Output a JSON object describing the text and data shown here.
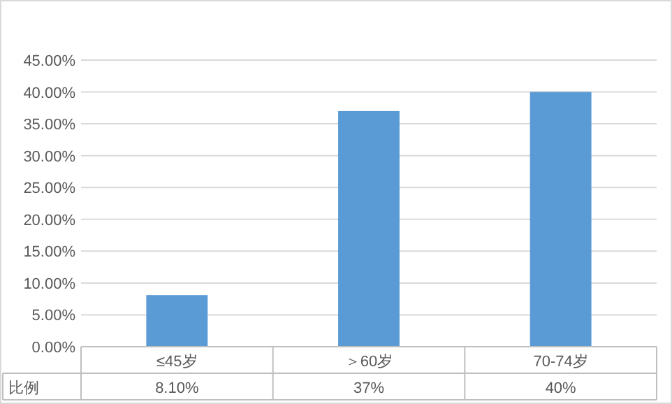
{
  "chart_data": {
    "type": "bar",
    "categories": [
      "≤45岁",
      "＞60岁",
      "70-74岁"
    ],
    "series": [
      {
        "name": "比例",
        "color": "#5b9bd5",
        "values": [
          8.1,
          37,
          40
        ],
        "value_labels": [
          "8.10%",
          "37%",
          "40%"
        ]
      }
    ],
    "ylim": [
      0,
      45
    ],
    "yticks": [
      {
        "value": 0,
        "label": "0.00%"
      },
      {
        "value": 5,
        "label": "5.00%"
      },
      {
        "value": 10,
        "label": "10.00%"
      },
      {
        "value": 15,
        "label": "15.00%"
      },
      {
        "value": 20,
        "label": "20.00%"
      },
      {
        "value": 25,
        "label": "25.00%"
      },
      {
        "value": 30,
        "label": "30.00%"
      },
      {
        "value": 35,
        "label": "35.00%"
      },
      {
        "value": 40,
        "label": "40.00%"
      },
      {
        "value": 45,
        "label": "45.00%"
      }
    ],
    "grid": "y"
  }
}
